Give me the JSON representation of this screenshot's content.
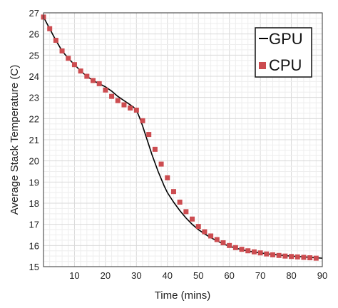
{
  "chart_data": {
    "type": "line",
    "title": "",
    "xlabel": "Time (mins)",
    "ylabel": "Average Stack Temperature (C)",
    "xlim": [
      0,
      90
    ],
    "ylim": [
      15,
      27
    ],
    "grid": true,
    "legend_position": "top-right",
    "x_ticks": [
      10,
      20,
      30,
      40,
      50,
      60,
      70,
      80,
      90
    ],
    "y_ticks": [
      15,
      16,
      17,
      18,
      19,
      20,
      21,
      22,
      23,
      24,
      25,
      26,
      27
    ],
    "series": [
      {
        "name": "GPU",
        "style": "line",
        "color": "#000000",
        "x": [
          0,
          2,
          4,
          6,
          8,
          10,
          12,
          14,
          16,
          18,
          20,
          22,
          24,
          26,
          28,
          29,
          30,
          31,
          32,
          33,
          34,
          35,
          36,
          37,
          38,
          39,
          40,
          42,
          44,
          46,
          48,
          50,
          52,
          54,
          56,
          58,
          60,
          62,
          64,
          66,
          68,
          70,
          72,
          74,
          76,
          78,
          80,
          82,
          84,
          86,
          88,
          90
        ],
        "y": [
          26.8,
          26.25,
          25.7,
          25.2,
          24.85,
          24.55,
          24.25,
          24.0,
          23.8,
          23.65,
          23.5,
          23.3,
          23.05,
          22.85,
          22.65,
          22.55,
          22.4,
          22.05,
          21.65,
          21.2,
          20.75,
          20.3,
          19.9,
          19.5,
          19.15,
          18.8,
          18.5,
          18.05,
          17.65,
          17.3,
          17.0,
          16.75,
          16.55,
          16.37,
          16.22,
          16.08,
          15.97,
          15.88,
          15.8,
          15.74,
          15.69,
          15.65,
          15.61,
          15.58,
          15.55,
          15.52,
          15.5,
          15.48,
          15.46,
          15.44,
          15.42,
          15.4
        ]
      },
      {
        "name": "CPU",
        "style": "markers",
        "marker": "square",
        "color": "#cc4c50",
        "x": [
          0,
          2,
          4,
          6,
          8,
          10,
          12,
          14,
          16,
          18,
          20,
          22,
          24,
          26,
          28,
          30,
          32,
          34,
          36,
          38,
          40,
          42,
          44,
          46,
          48,
          50,
          52,
          54,
          56,
          58,
          60,
          62,
          64,
          66,
          68,
          70,
          72,
          74,
          76,
          78,
          80,
          82,
          84,
          86,
          88
        ],
        "y": [
          26.8,
          26.25,
          25.7,
          25.2,
          24.85,
          24.55,
          24.25,
          24.0,
          23.8,
          23.65,
          23.35,
          23.05,
          22.85,
          22.65,
          22.5,
          22.4,
          21.9,
          21.25,
          20.55,
          19.85,
          19.2,
          18.55,
          18.05,
          17.6,
          17.25,
          16.9,
          16.65,
          16.45,
          16.28,
          16.13,
          16.0,
          15.9,
          15.82,
          15.75,
          15.7,
          15.65,
          15.6,
          15.56,
          15.53,
          15.5,
          15.48,
          15.46,
          15.44,
          15.42,
          15.4
        ]
      }
    ]
  }
}
